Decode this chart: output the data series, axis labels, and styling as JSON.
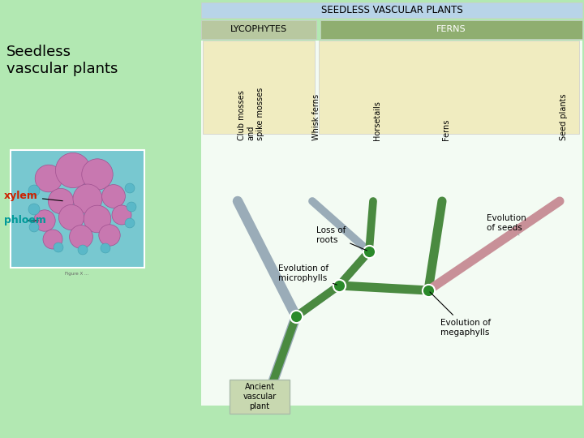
{
  "background_color": "#b2e8b2",
  "title": "SEEDLESS VASCULAR PLANTS",
  "title_box_color": "#b8d4e8",
  "lyco_box_color": "#b8c8a0",
  "ferns_box_color": "#8fae70",
  "plant_image_bg": "#f0ecc0",
  "left_text_title": "Seedless\nvascular plants",
  "left_label_xylem": "xylem",
  "left_label_phloem": "phloem",
  "xylem_color": "#cc2200",
  "phloem_color": "#009999",
  "node_color": "#2a8a2a",
  "ancient_box_color": "#c8d8b0",
  "labels_text": [
    "Club mosses\nand\nspike mosses",
    "Whisk ferns",
    "Horsetails",
    "Ferns",
    "Seed plants"
  ],
  "c_grey": "#9aacb8",
  "c_green": "#4a8a40",
  "c_pink": "#c89098"
}
